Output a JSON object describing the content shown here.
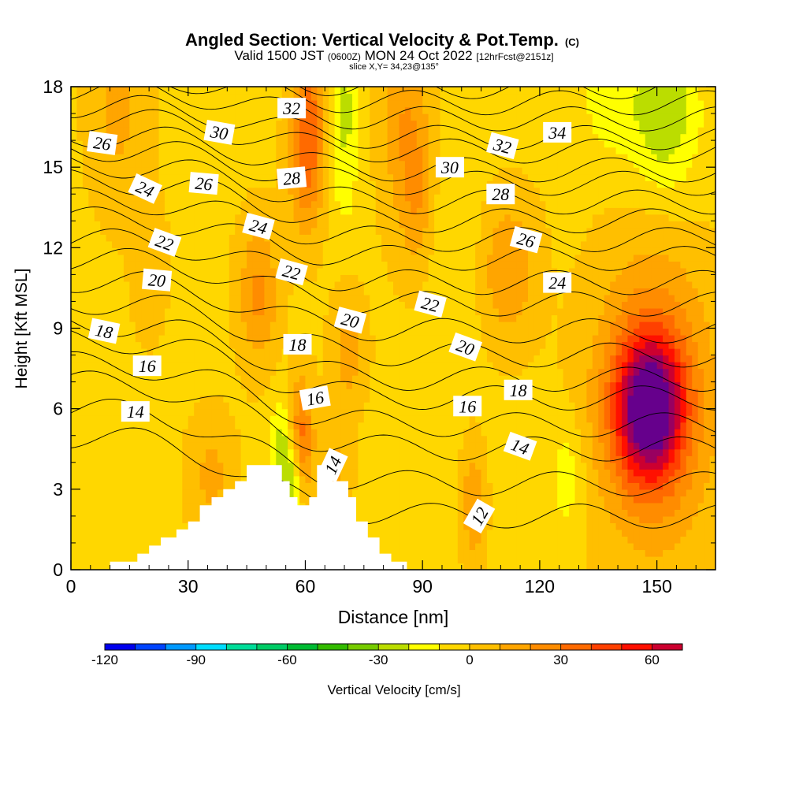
{
  "chart_data": {
    "type": "heatmap",
    "title": "Angled Section: Vertical Velocity & Pot.Temp.",
    "title_unit": "(C)",
    "subtitle_parts": [
      "Valid 1500 JST",
      "(0600Z)",
      "MON 24 Oct 2022",
      "[12hrFcst@2151z]"
    ],
    "slice_label": "slice X,Y= 34,23@135°",
    "xlabel": "Distance [nm]",
    "ylabel": "Height [Kft MSL]",
    "xlim": [
      0,
      165
    ],
    "ylim": [
      0,
      18
    ],
    "xticks": [
      "0",
      "30",
      "60",
      "90",
      "120",
      "150"
    ],
    "yticks": [
      "0",
      "3",
      "6",
      "9",
      "12",
      "15",
      "18"
    ],
    "colorbar": {
      "label": "Vertical Velocity [cm/s]",
      "range": [
        -120,
        70
      ],
      "step": 10,
      "tick_labels": [
        "-120",
        "-90",
        "-60",
        "-30",
        "0",
        "30",
        "60"
      ],
      "colors": [
        "#0000ee",
        "#0044ff",
        "#0099ff",
        "#00ddff",
        "#00dd99",
        "#00cc66",
        "#00bb33",
        "#33bb00",
        "#77cc00",
        "#bbdd00",
        "#ffff00",
        "#ffd700",
        "#ffbf00",
        "#ffa500",
        "#ff8c00",
        "#ff6a00",
        "#ff4000",
        "#ff1000",
        "#cc0030",
        "#990060",
        "#66008c"
      ]
    },
    "terrain": [
      [
        0,
        0
      ],
      [
        10,
        0
      ],
      [
        10,
        0.3
      ],
      [
        17,
        0.3
      ],
      [
        17,
        0.6
      ],
      [
        20,
        0.6
      ],
      [
        20,
        0.9
      ],
      [
        23,
        0.9
      ],
      [
        23,
        1.2
      ],
      [
        27,
        1.2
      ],
      [
        27,
        1.5
      ],
      [
        30,
        1.5
      ],
      [
        30,
        1.8
      ],
      [
        33,
        1.8
      ],
      [
        33,
        2.4
      ],
      [
        36,
        2.4
      ],
      [
        36,
        2.7
      ],
      [
        39,
        2.7
      ],
      [
        39,
        3.0
      ],
      [
        42,
        3.0
      ],
      [
        42,
        3.3
      ],
      [
        45,
        3.3
      ],
      [
        45,
        3.9
      ],
      [
        54,
        3.9
      ],
      [
        54,
        3.3
      ],
      [
        56,
        3.3
      ],
      [
        56,
        2.7
      ],
      [
        58,
        2.7
      ],
      [
        58,
        2.4
      ],
      [
        61,
        2.4
      ],
      [
        61,
        2.7
      ],
      [
        63,
        2.7
      ],
      [
        63,
        3.9
      ],
      [
        67,
        3.9
      ],
      [
        67,
        3.3
      ],
      [
        71,
        3.3
      ],
      [
        71,
        2.7
      ],
      [
        73,
        2.7
      ],
      [
        73,
        1.8
      ],
      [
        76,
        1.8
      ],
      [
        76,
        1.2
      ],
      [
        79,
        1.2
      ],
      [
        79,
        0.6
      ],
      [
        82,
        0.6
      ],
      [
        82,
        0.3
      ],
      [
        86,
        0.3
      ],
      [
        86,
        0
      ],
      [
        165,
        0
      ]
    ],
    "velocity_features": [
      {
        "x": 148,
        "y": 6.0,
        "sx": 6,
        "sy": 1.8,
        "v": 70
      },
      {
        "x": 149,
        "y": 6.3,
        "sx": 10,
        "sy": 3.6,
        "v": 40
      },
      {
        "x": 59,
        "y": 5.0,
        "sx": 2.2,
        "sy": 1.5,
        "v": 35
      },
      {
        "x": 48,
        "y": 10.3,
        "sx": 3.5,
        "sy": 1.8,
        "v": 25
      },
      {
        "x": 112,
        "y": 11.2,
        "sx": 5,
        "sy": 1.8,
        "v": 22
      },
      {
        "x": 61,
        "y": 17.5,
        "sx": 3,
        "sy": 2.5,
        "v": 28
      },
      {
        "x": 60,
        "y": 15.0,
        "sx": 3,
        "sy": 1.8,
        "v": 22
      },
      {
        "x": 85,
        "y": 17.0,
        "sx": 4,
        "sy": 3,
        "v": 20
      },
      {
        "x": 89,
        "y": 14.0,
        "sx": 3,
        "sy": 2,
        "v": 18
      },
      {
        "x": 12,
        "y": 17.2,
        "sx": 5,
        "sy": 2.5,
        "v": 15
      },
      {
        "x": 20,
        "y": 11.3,
        "sx": 3,
        "sy": 1.8,
        "v": 10
      },
      {
        "x": 71,
        "y": 8.2,
        "sx": 3,
        "sy": 1.5,
        "v": 18
      },
      {
        "x": 103,
        "y": 2.4,
        "sx": 2,
        "sy": 1.5,
        "v": 22
      },
      {
        "x": 36,
        "y": 3.5,
        "sx": 4,
        "sy": 1.5,
        "v": 15
      },
      {
        "x": 68,
        "y": 3.8,
        "sx": 2.5,
        "sy": 1,
        "v": 15
      },
      {
        "x": 54,
        "y": 4.4,
        "sx": 2,
        "sy": 1.4,
        "v": -25
      },
      {
        "x": 57,
        "y": 3.3,
        "sx": 1.5,
        "sy": 1,
        "v": -28
      },
      {
        "x": 70,
        "y": 17.5,
        "sx": 2.5,
        "sy": 1.5,
        "v": -20
      },
      {
        "x": 152,
        "y": 17.0,
        "sx": 6,
        "sy": 2,
        "v": -28
      },
      {
        "x": 138,
        "y": 17.5,
        "sx": 5,
        "sy": 1.5,
        "v": -15
      },
      {
        "x": 70,
        "y": 14.5,
        "sx": 2.5,
        "sy": 1.5,
        "v": -12
      },
      {
        "x": 127,
        "y": 3.5,
        "sx": 3,
        "sy": 1.5,
        "v": -15
      },
      {
        "x": 98,
        "y": 12.0,
        "sx": 5,
        "sy": 2.5,
        "v": -8
      }
    ],
    "isentropes": [
      {
        "label": "12",
        "y0": -2.4,
        "dropAmp": 3.4,
        "bump": {
          "x": 118,
          "y": 1.4,
          "sx": 11,
          "sy": 2.5,
          "a": -1.0
        }
      },
      {
        "label": "14",
        "y0": 5.0,
        "dropAmp": 3.0
      },
      {
        "label": "15",
        "y0": 6.0,
        "dropAmp": 2.8
      },
      {
        "label": "16",
        "y0": 7.0,
        "dropAmp": 2.5
      },
      {
        "label": "17",
        "y0": 7.7,
        "dropAmp": 2.3
      },
      {
        "label": "18",
        "y0": 8.6,
        "dropAmp": 2.2
      },
      {
        "label": "19",
        "y0": 9.2,
        "dropAmp": 2.1
      },
      {
        "label": "20",
        "y0": 10.0,
        "dropAmp": 2.0
      },
      {
        "label": "21",
        "y0": 10.8,
        "dropAmp": 1.9
      },
      {
        "label": "22",
        "y0": 11.6,
        "dropAmp": 1.7
      },
      {
        "label": "23",
        "y0": 12.3,
        "dropAmp": 1.6
      },
      {
        "label": "24",
        "y0": 13.1,
        "dropAmp": 1.5
      },
      {
        "label": "25",
        "y0": 13.8,
        "dropAmp": 1.5
      },
      {
        "label": "26",
        "y0": 14.5,
        "dropAmp": 1.5
      },
      {
        "label": "27",
        "y0": 15.1,
        "dropAmp": 1.4
      },
      {
        "label": "28",
        "y0": 15.7,
        "dropAmp": 1.3
      },
      {
        "label": "29",
        "y0": 16.2,
        "dropAmp": 1.3
      },
      {
        "label": "30",
        "y0": 16.8,
        "dropAmp": 1.2
      },
      {
        "label": "31",
        "y0": 17.3,
        "dropAmp": 1.2
      },
      {
        "label": "32",
        "y0": 17.9,
        "dropAmp": 1.1
      },
      {
        "label": "33",
        "y0": 18.4,
        "dropAmp": 1.0
      },
      {
        "label": "34",
        "y0": 19.0,
        "dropAmp": 1.0
      },
      {
        "label": "35",
        "y0": 19.5,
        "dropAmp": 1.0
      }
    ],
    "contour_labels": [
      {
        "text": "26",
        "x": 8.0,
        "y": 15.9,
        "rot": 8
      },
      {
        "text": "24",
        "x": 19.0,
        "y": 14.2,
        "rot": 25
      },
      {
        "text": "22",
        "x": 24.0,
        "y": 12.2,
        "rot": 20
      },
      {
        "text": "20",
        "x": 22.0,
        "y": 10.8,
        "rot": 5
      },
      {
        "text": "18",
        "x": 8.5,
        "y": 8.9,
        "rot": 12
      },
      {
        "text": "16",
        "x": 19.5,
        "y": 7.6,
        "rot": 0
      },
      {
        "text": "14",
        "x": 16.5,
        "y": 5.9,
        "rot": 0
      },
      {
        "text": "30",
        "x": 38.0,
        "y": 16.3,
        "rot": 10
      },
      {
        "text": "26",
        "x": 34.0,
        "y": 14.4,
        "rot": 5
      },
      {
        "text": "24",
        "x": 48.0,
        "y": 12.8,
        "rot": 15
      },
      {
        "text": "32",
        "x": 56.5,
        "y": 17.2,
        "rot": 0
      },
      {
        "text": "28",
        "x": 56.5,
        "y": 14.6,
        "rot": -5
      },
      {
        "text": "22",
        "x": 56.5,
        "y": 11.1,
        "rot": 15
      },
      {
        "text": "20",
        "x": 71.5,
        "y": 9.3,
        "rot": 15
      },
      {
        "text": "18",
        "x": 58.0,
        "y": 8.4,
        "rot": 0
      },
      {
        "text": "16",
        "x": 62.5,
        "y": 6.4,
        "rot": -10
      },
      {
        "text": "14",
        "x": 67.0,
        "y": 3.9,
        "rot": -65
      },
      {
        "text": "30",
        "x": 97.0,
        "y": 15.0,
        "rot": 0
      },
      {
        "text": "22",
        "x": 92.0,
        "y": 9.9,
        "rot": 15
      },
      {
        "text": "20",
        "x": 101.0,
        "y": 8.3,
        "rot": 20
      },
      {
        "text": "16",
        "x": 101.5,
        "y": 6.1,
        "rot": 0
      },
      {
        "text": "12",
        "x": 104.5,
        "y": 2.0,
        "rot": -60
      },
      {
        "text": "32",
        "x": 110.5,
        "y": 15.8,
        "rot": 15
      },
      {
        "text": "28",
        "x": 110.0,
        "y": 14.0,
        "rot": 0
      },
      {
        "text": "26",
        "x": 116.5,
        "y": 12.3,
        "rot": 15
      },
      {
        "text": "24",
        "x": 124.5,
        "y": 10.7,
        "rot": 0
      },
      {
        "text": "18",
        "x": 114.5,
        "y": 6.7,
        "rot": 0
      },
      {
        "text": "14",
        "x": 115.0,
        "y": 4.6,
        "rot": 20
      },
      {
        "text": "34",
        "x": 124.5,
        "y": 16.3,
        "rot": 0
      }
    ]
  }
}
